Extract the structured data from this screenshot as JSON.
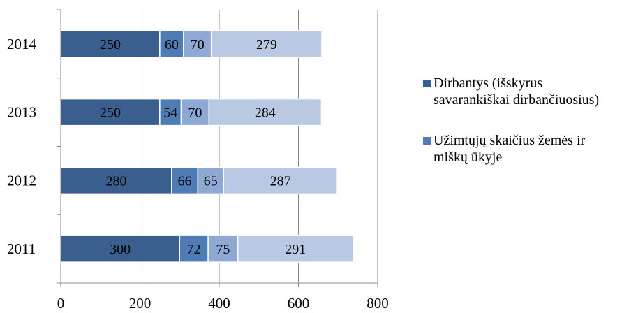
{
  "chart_data": {
    "type": "bar",
    "orientation": "horizontal",
    "stacked": true,
    "categories": [
      "2014",
      "2013",
      "2012",
      "2011"
    ],
    "series": [
      {
        "name": "Dirbantys (išskyrus savarankiškai dirbančiuosius)",
        "values": [
          250,
          250,
          280,
          300
        ],
        "color": "#3a5f8f"
      },
      {
        "name": "Užimtųjų skaičius žemės ir miškų ūkyje",
        "values": [
          60,
          54,
          66,
          72
        ],
        "color": "#4f7cb5"
      },
      {
        "values": [
          70,
          70,
          65,
          75
        ],
        "color": "#8ea9d3"
      },
      {
        "values": [
          279,
          284,
          287,
          291
        ],
        "color": "#b9c8e3"
      }
    ],
    "xlim": [
      0,
      800
    ],
    "xticks": [
      0,
      200,
      400,
      600,
      800
    ],
    "grid": true,
    "legend_position": "right",
    "xlabel": "",
    "ylabel": "",
    "title": ""
  },
  "legend": {
    "entries": [
      {
        "label": "Dirbantys (išskyrus savarankiškai dirbančiuosius)",
        "color": "#3a5f8f"
      },
      {
        "label": "Užimtųjų skaičius žemės ir miškų ūkyje",
        "color": "#4f7cb5"
      }
    ]
  }
}
